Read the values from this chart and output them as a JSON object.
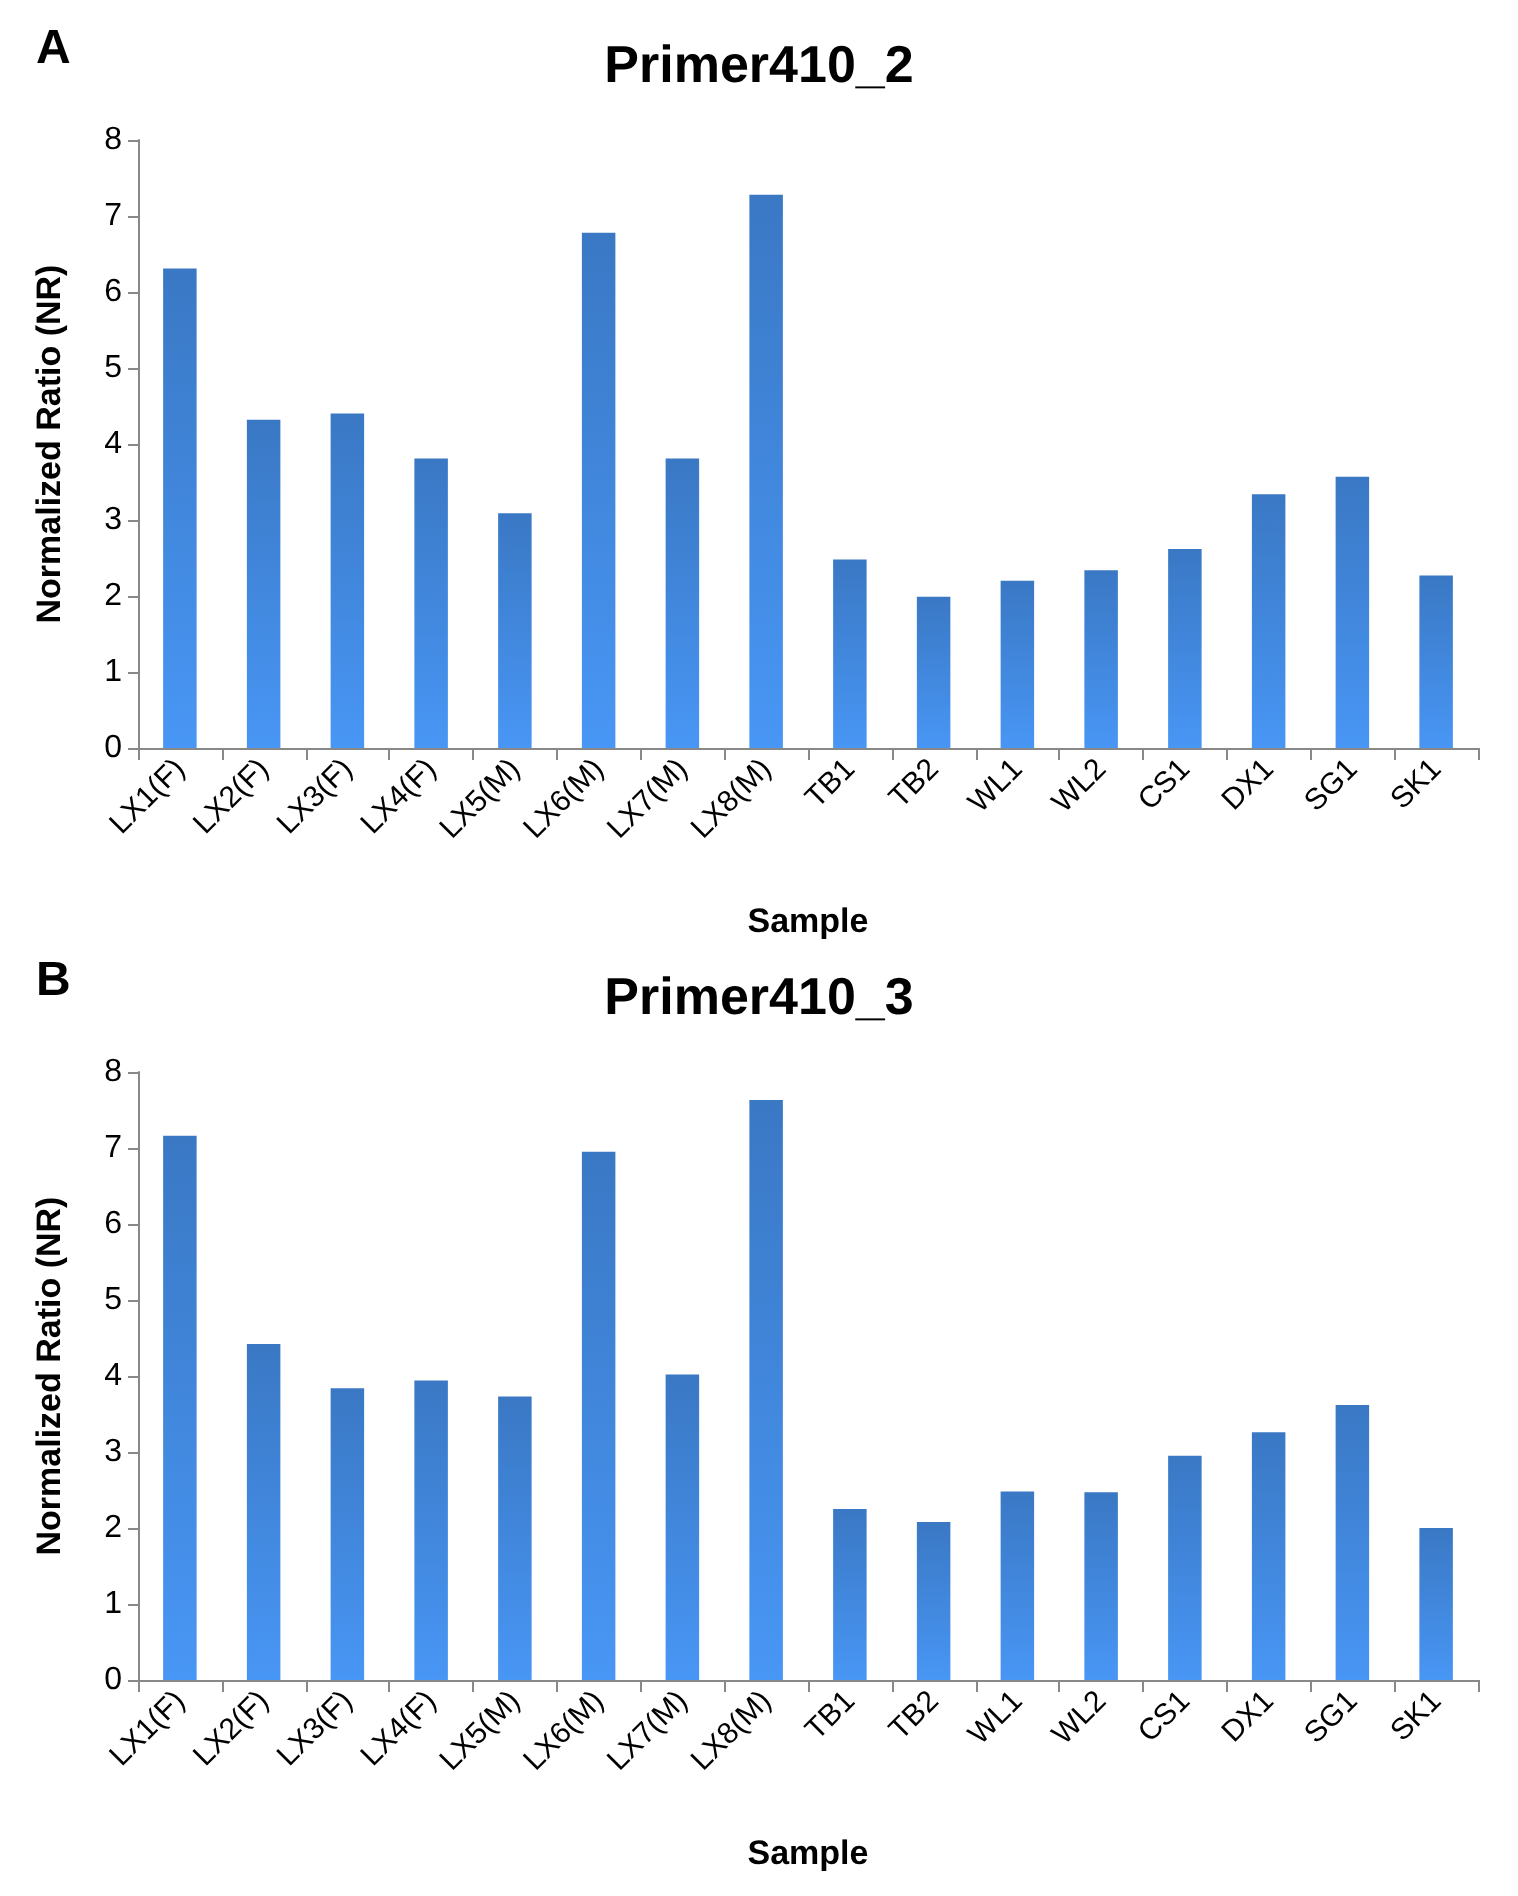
{
  "chart_data": [
    {
      "type": "bar",
      "title": "Primer410_2",
      "xlabel": "Sample",
      "ylabel": "Normalized Ratio (NR)",
      "annotations": [
        "A"
      ],
      "categories": [
        "LX1(F)",
        "LX2(F)",
        "LX3(F)",
        "LX4(F)",
        "LX5(M)",
        "LX6(M)",
        "LX7(M)",
        "LX8(M)",
        "TB1",
        "TB2",
        "WL1",
        "WL2",
        "CS1",
        "DX1",
        "SG1",
        "SK1"
      ],
      "values": [
        6.31,
        4.32,
        4.4,
        3.81,
        3.09,
        6.78,
        3.81,
        7.28,
        2.48,
        1.99,
        2.2,
        2.34,
        2.62,
        3.34,
        3.57,
        2.27
      ],
      "color": "#3a78c4",
      "ylim": [
        0,
        8
      ],
      "yticks": [
        0,
        1,
        2,
        3,
        4,
        5,
        6,
        7,
        8
      ],
      "grid": false
    },
    {
      "type": "bar",
      "title": "Primer410_3",
      "xlabel": "Sample",
      "ylabel": "Normalized Ratio (NR)",
      "annotations": [
        "B"
      ],
      "categories": [
        "LX1(F)",
        "LX2(F)",
        "LX3(F)",
        "LX4(F)",
        "LX5(M)",
        "LX6(M)",
        "LX7(M)",
        "LX8(M)",
        "TB1",
        "TB2",
        "WL1",
        "WL2",
        "CS1",
        "DX1",
        "SG1",
        "SK1"
      ],
      "values": [
        7.16,
        4.42,
        3.84,
        3.94,
        3.73,
        6.95,
        4.02,
        7.63,
        2.25,
        2.08,
        2.48,
        2.47,
        2.95,
        3.26,
        3.62,
        2.0
      ],
      "color": "#3a78c4",
      "ylim": [
        0,
        8
      ],
      "yticks": [
        0,
        1,
        2,
        3,
        4,
        5,
        6,
        7,
        8
      ],
      "grid": false
    }
  ]
}
